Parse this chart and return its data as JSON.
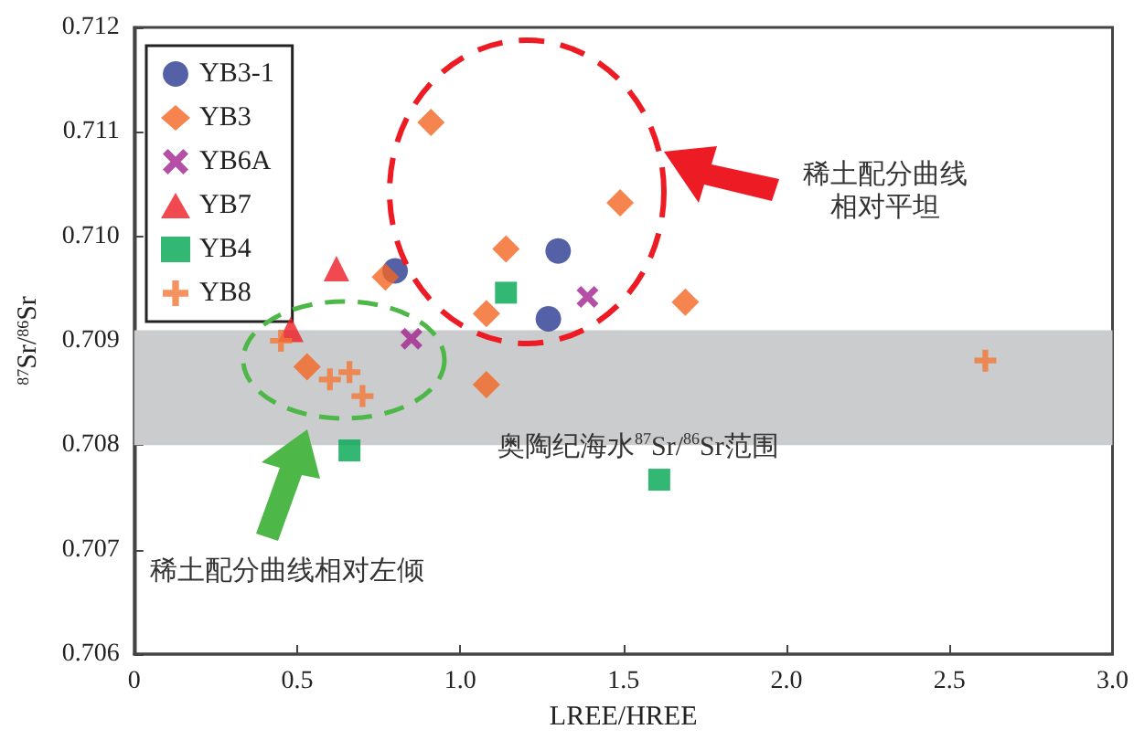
{
  "chart_data": {
    "type": "scatter",
    "xlabel": "LREE/HREE",
    "ylabel": "$^{87}$Sr/$^{86}$Sr",
    "xlim": [
      0,
      3.0
    ],
    "xticks": [
      0,
      0.5,
      {
        "value": 1,
        "label": "1.0"
      },
      1.5,
      {
        "value": 2,
        "label": "2.0"
      },
      2.5,
      {
        "value": 3,
        "label": "3.0"
      }
    ],
    "ylim": [
      0.706,
      0.712
    ],
    "yticks": [
      0.706,
      0.707,
      0.708,
      0.709,
      {
        "value": 0.71,
        "label": "0.710"
      },
      0.711,
      0.712
    ],
    "grid": false,
    "legend": "top left",
    "series": [
      {
        "name": "YB3-1",
        "color": "#2b3990",
        "marker": "circle",
        "x": [
          0.8,
          1.3,
          1.27
        ],
        "values": [
          0.70967,
          0.70986,
          0.70921
        ]
      },
      {
        "name": "YB3",
        "color": "#f26522",
        "marker": "diamond",
        "x": [
          0.91,
          1.49,
          1.14,
          0.77,
          1.08,
          0.53,
          1.08,
          1.69
        ],
        "values": [
          0.71109,
          0.71032,
          0.70988,
          0.70961,
          0.70926,
          0.70875,
          0.70858,
          0.70937
        ]
      },
      {
        "name": "YB6A",
        "color": "#a3238e",
        "marker": "x",
        "x": [
          1.39,
          0.85
        ],
        "values": [
          0.70942,
          0.70902
        ]
      },
      {
        "name": "YB7",
        "color": "#ed1c24",
        "marker": "triangle",
        "x": [
          0.62,
          0.48
        ],
        "values": [
          0.70969,
          0.70911
        ]
      },
      {
        "name": "YB4",
        "color": "#00a651",
        "marker": "square",
        "x": [
          1.14,
          0.66,
          1.61
        ],
        "values": [
          0.70946,
          0.70795,
          0.70767
        ]
      },
      {
        "name": "YB8",
        "color": "#f37736",
        "marker": "plus",
        "x": [
          0.45,
          0.6,
          0.66,
          0.7,
          2.61
        ],
        "values": [
          0.709,
          0.70863,
          0.7087,
          0.70847,
          0.70881
        ]
      }
    ],
    "bands": [
      {
        "axis": "y",
        "from": 0.708,
        "to": 0.7091,
        "color": "#cbcccd",
        "label": "奥陶纪海水$^{87}$Sr/$^{86}$Sr范围"
      }
    ],
    "annotations": [
      "稀土配分曲线相对平坦",
      "稀土配分曲线相对左倾"
    ]
  }
}
